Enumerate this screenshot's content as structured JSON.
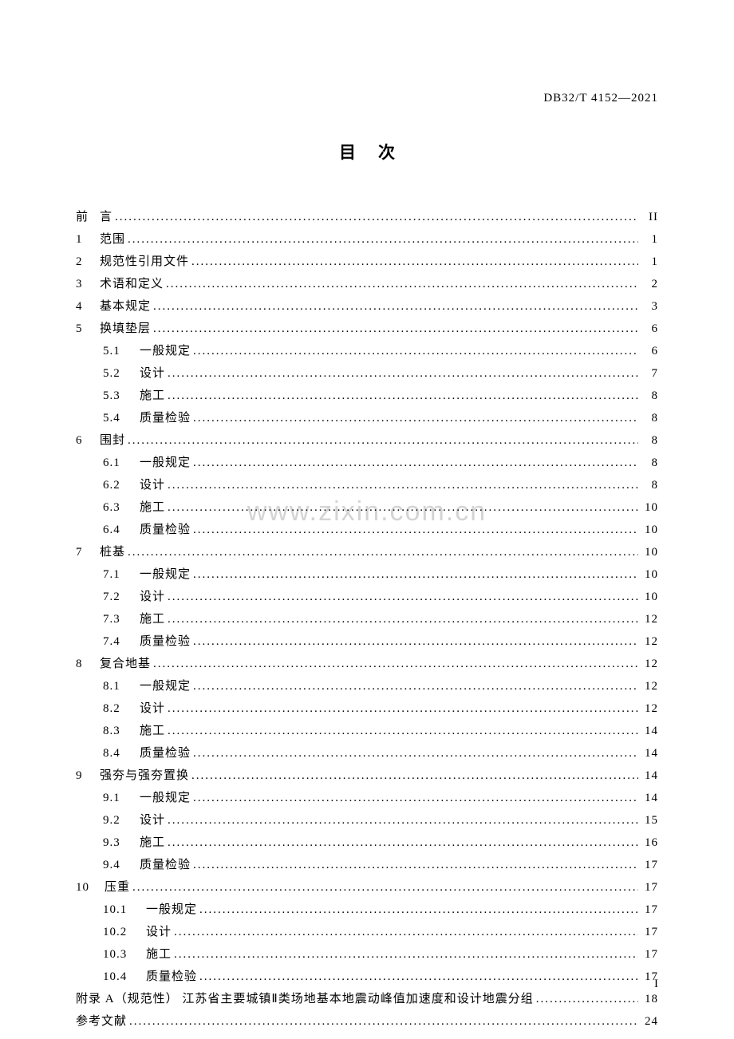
{
  "document": {
    "header_code": "DB32/T  4152—2021",
    "title": "目次",
    "page_number": "I",
    "watermark": "www.zixin.com.cn"
  },
  "toc": [
    {
      "type": "preface",
      "num": "前",
      "label": "言",
      "page": "II"
    },
    {
      "type": "level1",
      "num": "1",
      "label": "范围",
      "page": "1"
    },
    {
      "type": "level1",
      "num": "2",
      "label": "规范性引用文件",
      "page": "1"
    },
    {
      "type": "level1",
      "num": "3",
      "label": "术语和定义",
      "page": "2"
    },
    {
      "type": "level1",
      "num": "4",
      "label": "基本规定",
      "page": "3"
    },
    {
      "type": "level1",
      "num": "5",
      "label": "换填垫层",
      "page": "6"
    },
    {
      "type": "level2",
      "num": "5.1",
      "label": "一般规定",
      "page": "6"
    },
    {
      "type": "level2",
      "num": "5.2",
      "label": "设计",
      "page": "7"
    },
    {
      "type": "level2",
      "num": "5.3",
      "label": "施工",
      "page": "8"
    },
    {
      "type": "level2",
      "num": "5.4",
      "label": "质量检验",
      "page": "8"
    },
    {
      "type": "level1",
      "num": "6",
      "label": "围封",
      "page": "8"
    },
    {
      "type": "level2",
      "num": "6.1",
      "label": "一般规定",
      "page": "8"
    },
    {
      "type": "level2",
      "num": "6.2",
      "label": "设计",
      "page": "8"
    },
    {
      "type": "level2",
      "num": "6.3",
      "label": "施工",
      "page": "10"
    },
    {
      "type": "level2",
      "num": "6.4",
      "label": "质量检验",
      "page": "10"
    },
    {
      "type": "level1",
      "num": "7",
      "label": "桩基",
      "page": "10"
    },
    {
      "type": "level2",
      "num": "7.1",
      "label": "一般规定",
      "page": "10"
    },
    {
      "type": "level2",
      "num": "7.2",
      "label": "设计",
      "page": "10"
    },
    {
      "type": "level2",
      "num": "7.3",
      "label": "施工",
      "page": "12"
    },
    {
      "type": "level2",
      "num": "7.4",
      "label": "质量检验",
      "page": "12"
    },
    {
      "type": "level1",
      "num": "8",
      "label": "复合地基",
      "page": "12"
    },
    {
      "type": "level2",
      "num": "8.1",
      "label": "一般规定",
      "page": "12"
    },
    {
      "type": "level2",
      "num": "8.2",
      "label": "设计",
      "page": "12"
    },
    {
      "type": "level2",
      "num": "8.3",
      "label": "施工",
      "page": "14"
    },
    {
      "type": "level2",
      "num": "8.4",
      "label": "质量检验",
      "page": "14"
    },
    {
      "type": "level1",
      "num": "9",
      "label": "强夯与强夯置换",
      "page": "14"
    },
    {
      "type": "level2",
      "num": "9.1",
      "label": "一般规定",
      "page": "14"
    },
    {
      "type": "level2",
      "num": "9.2",
      "label": "设计",
      "page": "15"
    },
    {
      "type": "level2",
      "num": "9.3",
      "label": "施工",
      "page": "16"
    },
    {
      "type": "level2",
      "num": "9.4",
      "label": "质量检验",
      "page": "17"
    },
    {
      "type": "level1wide",
      "num": "10",
      "label": "压重",
      "page": "17"
    },
    {
      "type": "level2wide",
      "num": "10.1",
      "label": "一般规定",
      "page": "17"
    },
    {
      "type": "level2wide",
      "num": "10.2",
      "label": "设计",
      "page": "17"
    },
    {
      "type": "level2wide",
      "num": "10.3",
      "label": "施工",
      "page": "17"
    },
    {
      "type": "level2wide",
      "num": "10.4",
      "label": "质量检验",
      "page": "17"
    },
    {
      "type": "appendix",
      "label": "附录 A（规范性） 江苏省主要城镇Ⅱ类场地基本地震动峰值加速度和设计地震分组",
      "page": "18"
    },
    {
      "type": "appendix",
      "label": "参考文献",
      "page": "24"
    }
  ]
}
